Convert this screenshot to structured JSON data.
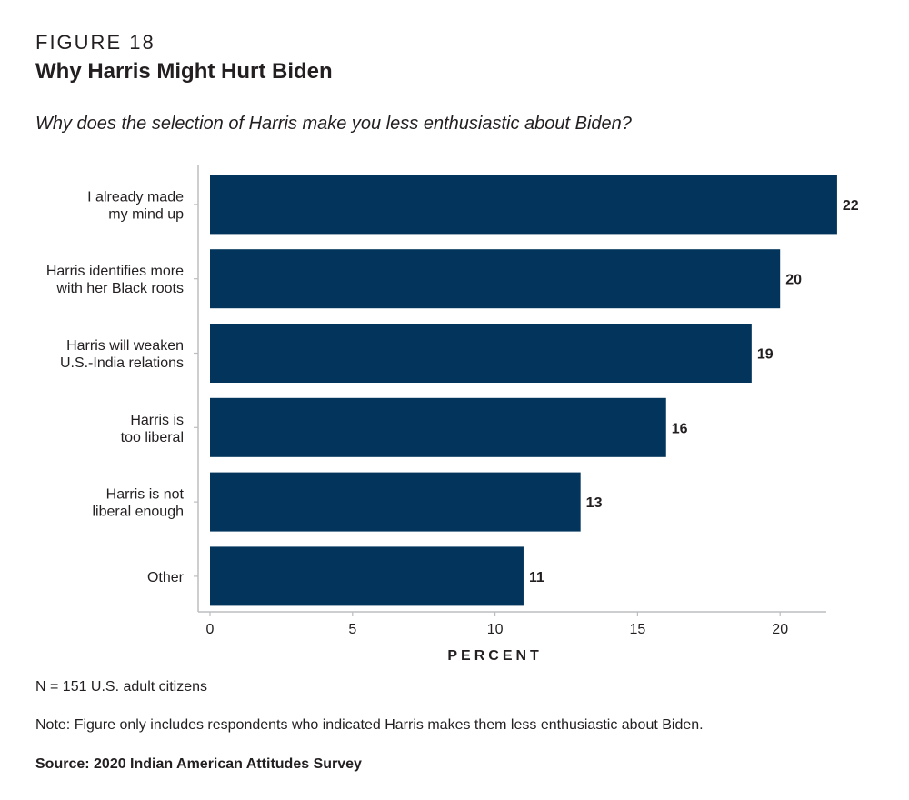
{
  "figure_label": "FIGURE 18",
  "title": "Why Harris Might Hurt Biden",
  "subtitle": "Why does the selection of Harris make you less enthusiastic about Biden?",
  "n_note": "N = 151 U.S. adult citizens",
  "note": "Note: Figure only includes respondents who indicated Harris makes them less enthusiastic about Biden.",
  "source": "Source: 2020 Indian American Attitudes Survey",
  "chart_data": {
    "type": "bar",
    "orientation": "horizontal",
    "categories": [
      [
        "I already made",
        "my mind up"
      ],
      [
        "Harris identifies more",
        "with her Black roots"
      ],
      [
        "Harris will weaken",
        "U.S.-India relations"
      ],
      [
        "Harris is",
        "too liberal"
      ],
      [
        "Harris is not",
        "liberal enough"
      ],
      [
        "Other"
      ]
    ],
    "values": [
      22,
      20,
      19,
      16,
      13,
      11
    ],
    "value_labels": [
      "22",
      "20",
      "19",
      "16",
      "13",
      "11"
    ],
    "xlabel": "PERCENT",
    "xlim": [
      -0.5,
      21.5
    ],
    "xticks": [
      0,
      5,
      10,
      15,
      20
    ],
    "bar_color": "#03355c",
    "grid": false
  }
}
